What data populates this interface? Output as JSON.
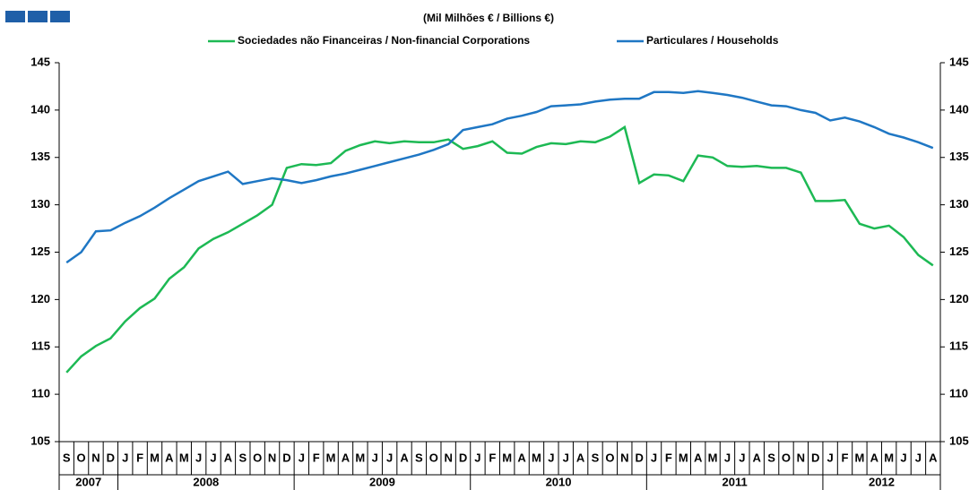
{
  "chart_data": {
    "type": "line",
    "subtitle": "(Mil Milhões € / Billions €)",
    "categories": [
      "S",
      "O",
      "N",
      "D",
      "J",
      "F",
      "M",
      "A",
      "M",
      "J",
      "J",
      "A",
      "S",
      "O",
      "N",
      "D",
      "J",
      "F",
      "M",
      "A",
      "M",
      "J",
      "J",
      "A",
      "S",
      "O",
      "N",
      "D",
      "J",
      "F",
      "M",
      "A",
      "M",
      "J",
      "J",
      "A",
      "S",
      "O",
      "N",
      "D",
      "J",
      "F",
      "M",
      "A",
      "M",
      "J",
      "J",
      "A",
      "S",
      "O",
      "N",
      "D",
      "J",
      "F",
      "M",
      "A",
      "M",
      "J",
      "J",
      "A"
    ],
    "years": [
      "2007",
      "2008",
      "2009",
      "2010",
      "2011",
      "2012"
    ],
    "series": [
      {
        "name": "Sociedades não Financeiras / Non-financial Corporations",
        "color": "#1db954",
        "values": [
          112.3,
          114.0,
          115.1,
          115.9,
          117.7,
          119.1,
          120.1,
          122.2,
          123.4,
          125.4,
          126.4,
          127.1,
          128.0,
          128.9,
          130.0,
          133.9,
          134.3,
          134.2,
          134.4,
          135.7,
          136.3,
          136.7,
          136.5,
          136.7,
          136.6,
          136.6,
          136.9,
          135.9,
          136.2,
          136.7,
          135.5,
          135.4,
          136.1,
          136.5,
          136.4,
          136.7,
          136.6,
          137.2,
          138.2,
          132.3,
          133.2,
          133.1,
          132.5,
          135.2,
          135.0,
          134.1,
          134.0,
          134.1,
          133.9,
          133.9,
          133.4,
          130.4,
          130.4,
          130.5,
          128.0,
          127.5,
          127.8,
          126.6,
          124.7,
          123.6
        ]
      },
      {
        "name": "Particulares / Households",
        "color": "#1f77c4",
        "values": [
          123.9,
          125.0,
          127.2,
          127.3,
          128.1,
          128.8,
          129.7,
          130.7,
          131.6,
          132.5,
          133.0,
          133.5,
          132.2,
          132.5,
          132.8,
          132.6,
          132.3,
          132.6,
          133.0,
          133.3,
          133.7,
          134.1,
          134.5,
          134.9,
          135.3,
          135.8,
          136.4,
          137.9,
          138.2,
          138.5,
          139.1,
          139.4,
          139.8,
          140.4,
          140.5,
          140.6,
          140.9,
          141.1,
          141.2,
          141.2,
          141.9,
          141.9,
          141.8,
          142.0,
          141.8,
          141.6,
          141.3,
          140.9,
          140.5,
          140.4,
          140.0,
          139.7,
          138.9,
          139.2,
          138.8,
          138.2,
          137.5,
          137.1,
          136.6,
          136.0
        ]
      }
    ],
    "ylim": [
      105,
      145
    ],
    "yticks": [
      105,
      110,
      115,
      120,
      125,
      130,
      135,
      140,
      145
    ],
    "y2lim": [
      105,
      145
    ],
    "y2ticks": [
      105,
      110,
      115,
      120,
      125,
      130,
      135,
      140,
      145
    ],
    "legend": "top"
  }
}
